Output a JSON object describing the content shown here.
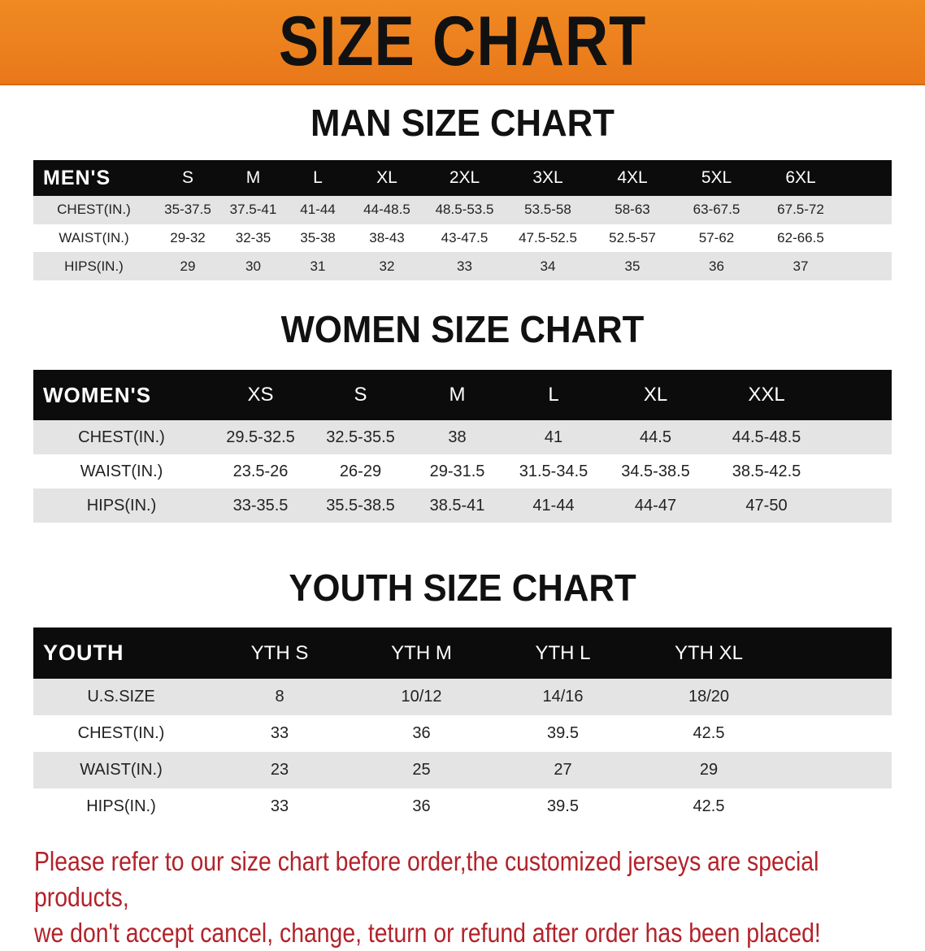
{
  "banner_title": "SIZE CHART",
  "colors": {
    "banner": "#ee8420",
    "header_row": "#0c0c0c",
    "stripe": "#e4e4e4",
    "note": "#b3222a"
  },
  "men": {
    "title": "MAN SIZE CHART",
    "header": [
      "MEN'S",
      "S",
      "M",
      "L",
      "XL",
      "2XL",
      "3XL",
      "4XL",
      "5XL",
      "6XL"
    ],
    "rows": [
      [
        "CHEST(IN.)",
        "35-37.5",
        "37.5-41",
        "41-44",
        "44-48.5",
        "48.5-53.5",
        "53.5-58",
        "58-63",
        "63-67.5",
        "67.5-72"
      ],
      [
        "WAIST(IN.)",
        "29-32",
        "32-35",
        "35-38",
        "38-43",
        "43-47.5",
        "47.5-52.5",
        "52.5-57",
        "57-62",
        "62-66.5"
      ],
      [
        "HIPS(IN.)",
        "29",
        "30",
        "31",
        "32",
        "33",
        "34",
        "35",
        "36",
        "37"
      ]
    ]
  },
  "women": {
    "title": "WOMEN SIZE CHART",
    "header": [
      "WOMEN'S",
      "XS",
      "S",
      "M",
      "L",
      "XL",
      "XXL"
    ],
    "rows": [
      [
        "CHEST(IN.)",
        "29.5-32.5",
        "32.5-35.5",
        "38",
        "41",
        "44.5",
        "44.5-48.5"
      ],
      [
        "WAIST(IN.)",
        "23.5-26",
        "26-29",
        "29-31.5",
        "31.5-34.5",
        "34.5-38.5",
        "38.5-42.5"
      ],
      [
        "HIPS(IN.)",
        "33-35.5",
        "35.5-38.5",
        "38.5-41",
        "41-44",
        "44-47",
        "47-50"
      ]
    ]
  },
  "youth": {
    "title": "YOUTH SIZE CHART",
    "header": [
      "YOUTH",
      "YTH S",
      "YTH M",
      "YTH L",
      "YTH XL"
    ],
    "rows": [
      [
        "U.S.SIZE",
        "8",
        "10/12",
        "14/16",
        "18/20"
      ],
      [
        "CHEST(IN.)",
        "33",
        "36",
        "39.5",
        "42.5"
      ],
      [
        "WAIST(IN.)",
        "23",
        "25",
        "27",
        "29"
      ],
      [
        "HIPS(IN.)",
        "33",
        "36",
        "39.5",
        "42.5"
      ]
    ]
  },
  "note": [
    "Please refer to our size chart before order,the customized jerseys are special products,",
    "we don't accept cancel, change, teturn or refund after order has been placed!"
  ]
}
